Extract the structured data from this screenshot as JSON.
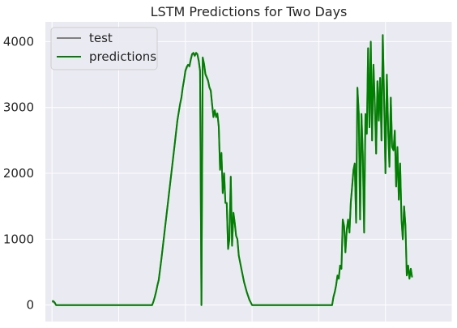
{
  "chart_data": {
    "type": "line",
    "title": "LSTM Predictions for Two Days",
    "xlabel": "",
    "ylabel": "",
    "xlim": [
      -5,
      300
    ],
    "ylim": [
      -250,
      4300
    ],
    "yticks": [
      0,
      1000,
      2000,
      3000,
      4000
    ],
    "xticks": [
      0,
      50,
      100,
      150,
      200,
      250,
      300
    ],
    "grid": true,
    "legend": {
      "position": "top-left"
    },
    "colors": {
      "background": "#eaeaf2",
      "grid": "#ffffff",
      "test": "#808080",
      "predictions": "#008000"
    },
    "series": [
      {
        "name": "test",
        "points": [
          [
            0,
            50
          ],
          [
            1,
            50
          ],
          [
            2,
            30
          ],
          [
            3,
            0
          ],
          [
            10,
            0
          ],
          [
            30,
            0
          ],
          [
            50,
            0
          ],
          [
            70,
            0
          ],
          [
            75,
            0
          ],
          [
            76,
            50
          ],
          [
            77,
            120
          ],
          [
            78,
            200
          ],
          [
            79,
            300
          ],
          [
            80,
            380
          ],
          [
            82,
            700
          ],
          [
            84,
            1050
          ],
          [
            86,
            1400
          ],
          [
            88,
            1750
          ],
          [
            90,
            2100
          ],
          [
            92,
            2450
          ],
          [
            94,
            2800
          ],
          [
            96,
            3050
          ],
          [
            97,
            3150
          ],
          [
            98,
            3300
          ],
          [
            99,
            3420
          ],
          [
            100,
            3550
          ],
          [
            101,
            3600
          ],
          [
            102,
            3650
          ],
          [
            103,
            3620
          ],
          [
            104,
            3720
          ],
          [
            105,
            3800
          ],
          [
            106,
            3820
          ],
          [
            107,
            3780
          ],
          [
            108,
            3820
          ],
          [
            109,
            3800
          ],
          [
            110,
            3700
          ],
          [
            111,
            3550
          ],
          [
            112,
            0
          ],
          [
            113,
            3750
          ],
          [
            114,
            3650
          ],
          [
            115,
            3500
          ],
          [
            116,
            3450
          ],
          [
            117,
            3400
          ],
          [
            118,
            3300
          ],
          [
            119,
            3250
          ],
          [
            120,
            3050
          ],
          [
            121,
            2850
          ],
          [
            122,
            2950
          ],
          [
            123,
            2850
          ],
          [
            124,
            2900
          ],
          [
            125,
            2700
          ],
          [
            126,
            2050
          ],
          [
            127,
            2300
          ],
          [
            128,
            1700
          ],
          [
            129,
            2000
          ],
          [
            130,
            1550
          ],
          [
            131,
            1550
          ],
          [
            132,
            850
          ],
          [
            133,
            1000
          ],
          [
            134,
            1950
          ],
          [
            135,
            900
          ],
          [
            136,
            1400
          ],
          [
            137,
            1250
          ],
          [
            138,
            1050
          ],
          [
            139,
            1000
          ],
          [
            140,
            750
          ],
          [
            142,
            550
          ],
          [
            144,
            350
          ],
          [
            146,
            200
          ],
          [
            148,
            80
          ],
          [
            150,
            0
          ],
          [
            170,
            0
          ],
          [
            200,
            0
          ],
          [
            210,
            0
          ],
          [
            211,
            120
          ],
          [
            212,
            200
          ],
          [
            213,
            300
          ],
          [
            214,
            450
          ],
          [
            215,
            400
          ],
          [
            216,
            600
          ],
          [
            217,
            550
          ],
          [
            218,
            1300
          ],
          [
            219,
            1200
          ],
          [
            220,
            800
          ],
          [
            221,
            1150
          ],
          [
            222,
            1300
          ],
          [
            223,
            1100
          ],
          [
            224,
            1550
          ],
          [
            225,
            1800
          ],
          [
            226,
            2050
          ],
          [
            227,
            2150
          ],
          [
            228,
            1250
          ],
          [
            229,
            3300
          ],
          [
            230,
            2900
          ],
          [
            231,
            1300
          ],
          [
            232,
            2900
          ],
          [
            233,
            2300
          ],
          [
            234,
            1100
          ],
          [
            235,
            2900
          ],
          [
            236,
            2600
          ],
          [
            237,
            3900
          ],
          [
            238,
            2700
          ],
          [
            239,
            4000
          ],
          [
            240,
            2500
          ],
          [
            241,
            3650
          ],
          [
            242,
            3100
          ],
          [
            243,
            2300
          ],
          [
            244,
            3400
          ],
          [
            245,
            2800
          ],
          [
            246,
            3450
          ],
          [
            247,
            2500
          ],
          [
            248,
            4100
          ],
          [
            249,
            3100
          ],
          [
            250,
            2000
          ],
          [
            251,
            3500
          ],
          [
            252,
            2700
          ],
          [
            253,
            2100
          ],
          [
            254,
            3150
          ],
          [
            255,
            2400
          ],
          [
            256,
            2350
          ],
          [
            257,
            2650
          ],
          [
            258,
            1800
          ],
          [
            259,
            2400
          ],
          [
            260,
            1600
          ],
          [
            261,
            2150
          ],
          [
            262,
            1300
          ],
          [
            263,
            1000
          ],
          [
            264,
            1500
          ],
          [
            265,
            1200
          ],
          [
            266,
            450
          ],
          [
            267,
            600
          ],
          [
            268,
            400
          ],
          [
            269,
            550
          ],
          [
            270,
            420
          ]
        ]
      },
      {
        "name": "predictions",
        "points": [
          [
            0,
            60
          ],
          [
            1,
            60
          ],
          [
            2,
            40
          ],
          [
            3,
            0
          ],
          [
            10,
            0
          ],
          [
            30,
            0
          ],
          [
            50,
            0
          ],
          [
            70,
            0
          ],
          [
            75,
            0
          ],
          [
            76,
            50
          ],
          [
            77,
            120
          ],
          [
            78,
            200
          ],
          [
            79,
            300
          ],
          [
            80,
            380
          ],
          [
            82,
            700
          ],
          [
            84,
            1050
          ],
          [
            86,
            1400
          ],
          [
            88,
            1750
          ],
          [
            90,
            2100
          ],
          [
            92,
            2450
          ],
          [
            94,
            2800
          ],
          [
            96,
            3050
          ],
          [
            97,
            3150
          ],
          [
            98,
            3300
          ],
          [
            99,
            3420
          ],
          [
            100,
            3560
          ],
          [
            101,
            3620
          ],
          [
            102,
            3650
          ],
          [
            103,
            3630
          ],
          [
            104,
            3730
          ],
          [
            105,
            3810
          ],
          [
            106,
            3830
          ],
          [
            107,
            3790
          ],
          [
            108,
            3830
          ],
          [
            109,
            3810
          ],
          [
            110,
            3710
          ],
          [
            111,
            3560
          ],
          [
            112,
            0
          ],
          [
            113,
            3760
          ],
          [
            114,
            3660
          ],
          [
            115,
            3510
          ],
          [
            116,
            3460
          ],
          [
            117,
            3410
          ],
          [
            118,
            3310
          ],
          [
            119,
            3260
          ],
          [
            120,
            3060
          ],
          [
            121,
            2860
          ],
          [
            122,
            2960
          ],
          [
            123,
            2860
          ],
          [
            124,
            2910
          ],
          [
            125,
            2710
          ],
          [
            126,
            2060
          ],
          [
            127,
            2310
          ],
          [
            128,
            1700
          ],
          [
            129,
            2000
          ],
          [
            130,
            1550
          ],
          [
            131,
            1550
          ],
          [
            132,
            850
          ],
          [
            133,
            1000
          ],
          [
            134,
            1950
          ],
          [
            135,
            900
          ],
          [
            136,
            1400
          ],
          [
            137,
            1250
          ],
          [
            138,
            1050
          ],
          [
            139,
            1000
          ],
          [
            140,
            750
          ],
          [
            142,
            550
          ],
          [
            144,
            350
          ],
          [
            146,
            200
          ],
          [
            148,
            80
          ],
          [
            150,
            0
          ],
          [
            170,
            0
          ],
          [
            200,
            0
          ],
          [
            210,
            0
          ],
          [
            211,
            120
          ],
          [
            212,
            200
          ],
          [
            213,
            300
          ],
          [
            214,
            450
          ],
          [
            215,
            400
          ],
          [
            216,
            600
          ],
          [
            217,
            550
          ],
          [
            218,
            1300
          ],
          [
            219,
            1200
          ],
          [
            220,
            800
          ],
          [
            221,
            1150
          ],
          [
            222,
            1300
          ],
          [
            223,
            1100
          ],
          [
            224,
            1550
          ],
          [
            225,
            1800
          ],
          [
            226,
            2050
          ],
          [
            227,
            2150
          ],
          [
            228,
            1250
          ],
          [
            229,
            3300
          ],
          [
            230,
            2900
          ],
          [
            231,
            1300
          ],
          [
            232,
            2900
          ],
          [
            233,
            2300
          ],
          [
            234,
            1100
          ],
          [
            235,
            2900
          ],
          [
            236,
            2600
          ],
          [
            237,
            3900
          ],
          [
            238,
            2700
          ],
          [
            239,
            4000
          ],
          [
            240,
            2500
          ],
          [
            241,
            3650
          ],
          [
            242,
            3100
          ],
          [
            243,
            2300
          ],
          [
            244,
            3400
          ],
          [
            245,
            2800
          ],
          [
            246,
            3450
          ],
          [
            247,
            2500
          ],
          [
            248,
            4100
          ],
          [
            249,
            3100
          ],
          [
            250,
            2000
          ],
          [
            251,
            3500
          ],
          [
            252,
            2700
          ],
          [
            253,
            2100
          ],
          [
            254,
            3150
          ],
          [
            255,
            2400
          ],
          [
            256,
            2350
          ],
          [
            257,
            2650
          ],
          [
            258,
            1800
          ],
          [
            259,
            2400
          ],
          [
            260,
            1600
          ],
          [
            261,
            2150
          ],
          [
            262,
            1300
          ],
          [
            263,
            1000
          ],
          [
            264,
            1500
          ],
          [
            265,
            1200
          ],
          [
            266,
            450
          ],
          [
            267,
            600
          ],
          [
            268,
            400
          ],
          [
            269,
            550
          ],
          [
            270,
            420
          ]
        ]
      }
    ]
  }
}
